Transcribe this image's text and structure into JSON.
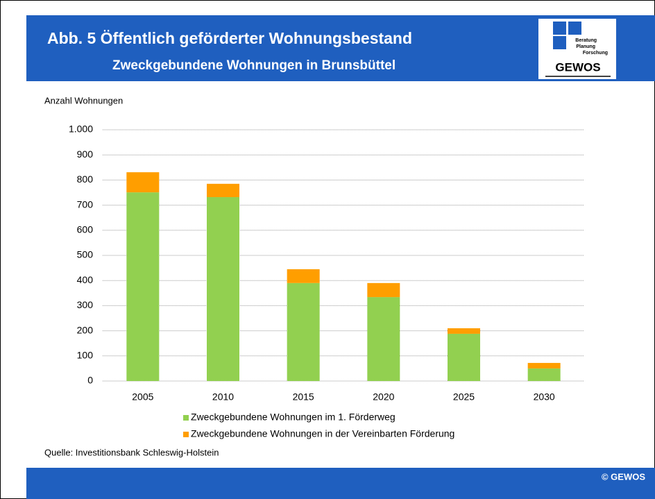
{
  "chart_data": {
    "type": "stacked_bar",
    "title": "Abb. 5  Öffentlich geförderter Wohnungsbestand",
    "subtitle": "Zweckgebundene Wohnungen in Brunsbüttel",
    "y_label": "Anzahl Wohnungen",
    "categories": [
      "2005",
      "2010",
      "2015",
      "2020",
      "2025",
      "2030"
    ],
    "series": [
      {
        "name": "Zweckgebundene Wohnungen im 1. Förderweg",
        "color": "#92d050",
        "values": [
          751,
          732,
          390,
          334,
          188,
          50
        ]
      },
      {
        "name": "Zweckgebundene Wohnungen in der Vereinbarten Förderung",
        "color": "#ff9e00",
        "values": [
          80,
          53,
          55,
          56,
          22,
          22
        ]
      }
    ],
    "ylim": [
      0,
      1000
    ],
    "yticks": [
      0,
      100,
      200,
      300,
      400,
      500,
      600,
      700,
      800,
      900,
      {
        "value": 1000,
        "label": "1.000"
      }
    ],
    "grid": true,
    "legend": "bottom"
  },
  "logo": {
    "lines": [
      "Beratung",
      "Planung",
      "Forschung"
    ],
    "name": "GEWOS"
  },
  "source": "Quelle: Investitionsbank Schleswig-Holstein",
  "footer": "© GEWOS"
}
